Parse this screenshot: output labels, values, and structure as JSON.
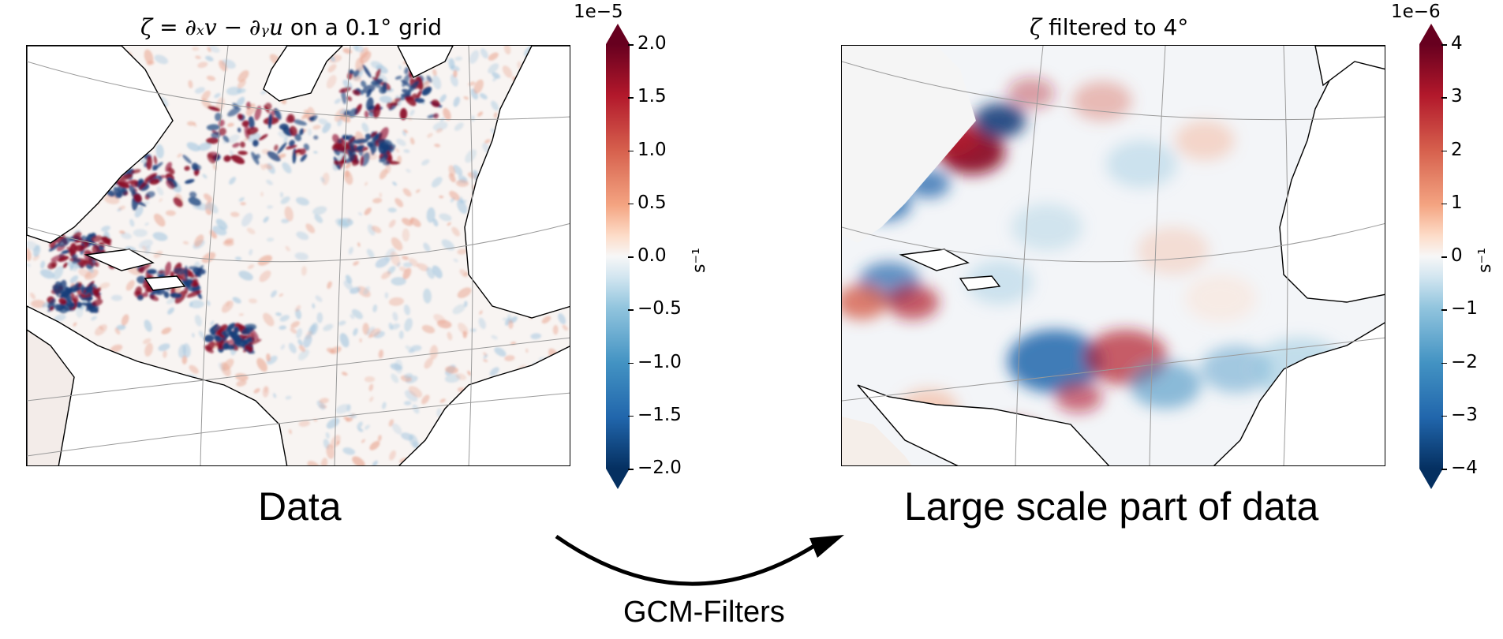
{
  "left_panel": {
    "title_math": "ζ = ∂ₓv − ∂ᵧu",
    "title_text": " on a 0.1° grid",
    "caption": "Data",
    "colorbar": {
      "exponent": "1e−5",
      "unit": "s⁻¹",
      "ticks": [
        "2.0",
        "1.5",
        "1.0",
        "0.5",
        "0.0",
        "−0.5",
        "−1.0",
        "−1.5",
        "−2.0"
      ]
    }
  },
  "right_panel": {
    "title_math": "ζ",
    "title_text": " filtered to 4°",
    "caption": "Large scale part of data",
    "colorbar": {
      "exponent": "1e−6",
      "unit": "s⁻¹",
      "ticks": [
        "4",
        "3",
        "2",
        "1",
        "0",
        "−1",
        "−2",
        "−3",
        "−4"
      ]
    }
  },
  "arrow": {
    "label": "GCM-Filters"
  },
  "colors": {
    "positive": "#67001f",
    "negative": "#053061",
    "neutral": "#f7f7f7",
    "land": "#ffffff",
    "coast": "#000000",
    "grid": "#9a9a9a"
  }
}
